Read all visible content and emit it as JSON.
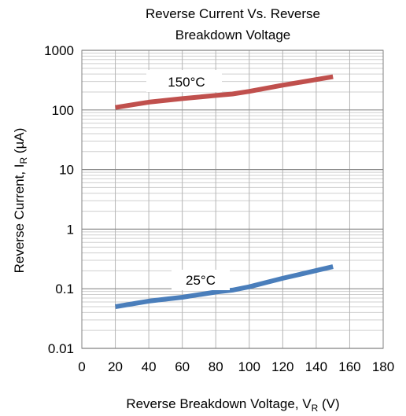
{
  "chart_data": {
    "type": "line",
    "title_lines": [
      "Reverse Current Vs. Reverse",
      "Breakdown Voltage"
    ],
    "xlabel_main": "Reverse Breakdown Voltage, V",
    "xlabel_sub": "R",
    "xlabel_tail": " (V)",
    "ylabel_main": "Reverse Current, I",
    "ylabel_sub": "R",
    "ylabel_tail": " (µA)",
    "xlim": [
      0,
      180
    ],
    "ylim": [
      0.01,
      1000
    ],
    "yscale": "log",
    "grid": true,
    "x_ticks": [
      0,
      20,
      40,
      60,
      80,
      100,
      120,
      140,
      160,
      180
    ],
    "x_tick_labels": [
      "0",
      "20",
      "40",
      "60",
      "80",
      "100",
      "120",
      "140",
      "160",
      "180"
    ],
    "y_ticks": [
      0.01,
      0.1,
      1,
      10,
      100,
      1000
    ],
    "y_tick_labels": [
      "0.01",
      "0.1",
      "1",
      "10",
      "100",
      "1000"
    ],
    "series": [
      {
        "name": "150°C",
        "color": "#C0504D",
        "x": [
          20,
          40,
          60,
          80,
          90,
          100,
          120,
          150
        ],
        "y": [
          110,
          135,
          155,
          175,
          185,
          205,
          260,
          360
        ]
      },
      {
        "name": "25°C",
        "color": "#4A7EBB",
        "x": [
          20,
          40,
          60,
          80,
          90,
          100,
          120,
          150
        ],
        "y": [
          0.05,
          0.062,
          0.072,
          0.088,
          0.095,
          0.108,
          0.15,
          0.235
        ]
      }
    ]
  }
}
